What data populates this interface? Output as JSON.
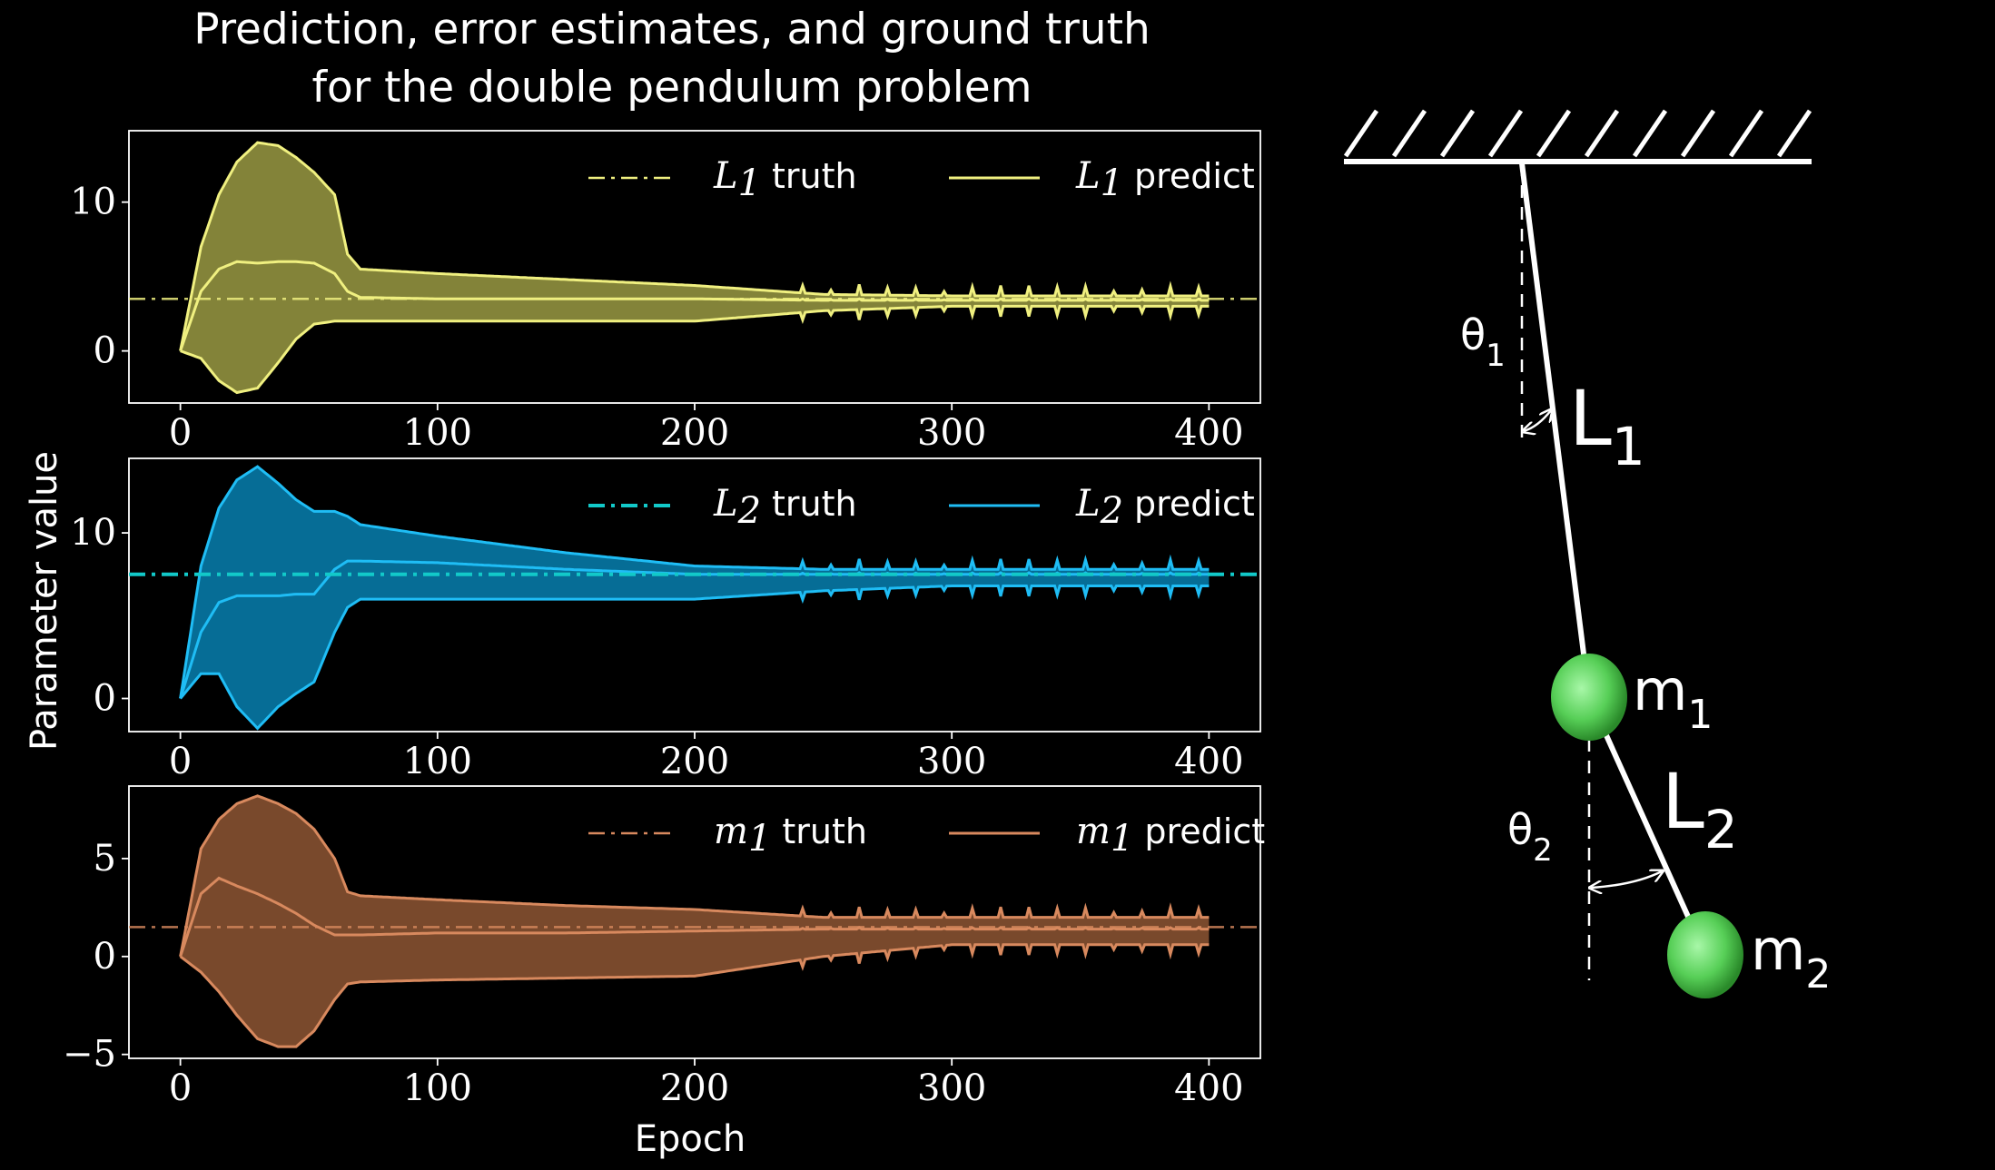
{
  "figure": {
    "title_line1": "Prediction, error estimates, and ground truth",
    "title_line2": "for the double pendulum problem",
    "ylabel": "Parameter value",
    "xlabel": "Epoch"
  },
  "chart_data": [
    {
      "type": "line",
      "xlim": [
        -20,
        420
      ],
      "ylim": [
        -3.5,
        14.8
      ],
      "xticks": [
        0,
        100,
        200,
        300,
        400
      ],
      "yticks": [
        0,
        10
      ],
      "color": "#f0f080",
      "fill_color": "#8a8a3c",
      "truth_value": 3.5,
      "legend": {
        "truth_sym": "L",
        "truth_sub": "1",
        "truth_text": "truth",
        "predict_sym": "L",
        "predict_sub": "1",
        "predict_text": "predict"
      },
      "series": [
        {
          "role": "upper",
          "x": [
            0,
            8,
            15,
            22,
            30,
            38,
            45,
            52,
            60,
            65,
            70,
            100,
            150,
            200,
            250,
            300,
            350,
            400
          ],
          "values": [
            0,
            7,
            10.5,
            12.7,
            14,
            13.8,
            13,
            12,
            10.5,
            6.5,
            5.5,
            5.2,
            4.8,
            4.4,
            3.8,
            3.7,
            3.7,
            3.7
          ]
        },
        {
          "role": "mean",
          "x": [
            0,
            8,
            15,
            22,
            30,
            38,
            45,
            52,
            60,
            65,
            70,
            100,
            150,
            200,
            250,
            300,
            350,
            400
          ],
          "values": [
            0,
            4,
            5.5,
            6,
            5.9,
            6,
            6,
            5.9,
            5.2,
            4,
            3.6,
            3.5,
            3.5,
            3.5,
            3.4,
            3.4,
            3.4,
            3.4
          ]
        },
        {
          "role": "lower",
          "x": [
            0,
            8,
            15,
            22,
            30,
            38,
            45,
            52,
            60,
            65,
            70,
            100,
            150,
            200,
            250,
            300,
            350,
            400
          ],
          "values": [
            0,
            -0.5,
            -2,
            -2.8,
            -2.5,
            -0.8,
            0.8,
            1.8,
            2,
            2,
            2,
            2,
            2,
            2,
            2.7,
            3,
            3,
            3
          ]
        }
      ]
    },
    {
      "type": "line",
      "xlim": [
        -20,
        420
      ],
      "ylim": [
        -2,
        14.5
      ],
      "xticks": [
        0,
        100,
        200,
        300,
        400
      ],
      "yticks": [
        0,
        10
      ],
      "color": "#1fbdf5",
      "fill_color": "#06739e",
      "truth_color": "#12c9c9",
      "truth_value": 7.5,
      "legend": {
        "truth_sym": "L",
        "truth_sub": "2",
        "truth_text": "truth",
        "predict_sym": "L",
        "predict_sub": "2",
        "predict_text": "predict"
      },
      "series": [
        {
          "role": "upper",
          "x": [
            0,
            8,
            15,
            22,
            30,
            38,
            45,
            52,
            60,
            65,
            70,
            100,
            150,
            200,
            250,
            300,
            350,
            400
          ],
          "values": [
            0,
            8,
            11.5,
            13.2,
            14,
            13,
            12,
            11.3,
            11.3,
            11,
            10.5,
            9.8,
            8.8,
            8,
            7.8,
            7.8,
            7.8,
            7.8
          ]
        },
        {
          "role": "mean",
          "x": [
            0,
            8,
            15,
            22,
            30,
            38,
            45,
            52,
            60,
            65,
            70,
            100,
            150,
            200,
            250,
            300,
            350,
            400
          ],
          "values": [
            0,
            4,
            5.8,
            6.2,
            6.2,
            6.2,
            6.3,
            6.3,
            7.8,
            8.3,
            8.3,
            8.2,
            7.8,
            7.5,
            7.5,
            7.5,
            7.5,
            7.5
          ]
        },
        {
          "role": "lower",
          "x": [
            0,
            8,
            15,
            22,
            30,
            38,
            45,
            52,
            60,
            65,
            70,
            100,
            150,
            200,
            250,
            300,
            350,
            400
          ],
          "values": [
            0,
            1.5,
            1.5,
            -0.5,
            -1.8,
            -0.5,
            0.3,
            1,
            4,
            5.5,
            6,
            6,
            6,
            6,
            6.5,
            6.8,
            6.8,
            6.8
          ]
        }
      ]
    },
    {
      "type": "line",
      "xlim": [
        -20,
        420
      ],
      "ylim": [
        -5.2,
        8.7
      ],
      "xticks": [
        0,
        100,
        200,
        300,
        400
      ],
      "yticks": [
        -5,
        0,
        5
      ],
      "color": "#d8895e",
      "fill_color": "#7f4d2e",
      "truth_value": 1.5,
      "legend": {
        "truth_sym": "m",
        "truth_sub": "1",
        "truth_text": "truth",
        "predict_sym": "m",
        "predict_sub": "1",
        "predict_text": "predict"
      },
      "series": [
        {
          "role": "upper",
          "x": [
            0,
            8,
            15,
            22,
            30,
            38,
            45,
            52,
            60,
            65,
            70,
            100,
            150,
            200,
            250,
            300,
            350,
            400
          ],
          "values": [
            0,
            5.5,
            7,
            7.8,
            8.2,
            7.8,
            7.3,
            6.5,
            5,
            3.3,
            3.1,
            2.9,
            2.6,
            2.4,
            2,
            2,
            2,
            2
          ]
        },
        {
          "role": "mean",
          "x": [
            0,
            8,
            15,
            22,
            30,
            38,
            45,
            52,
            60,
            65,
            70,
            100,
            150,
            200,
            250,
            300,
            350,
            400
          ],
          "values": [
            0,
            3.2,
            4,
            3.6,
            3.2,
            2.7,
            2.2,
            1.6,
            1.1,
            1.1,
            1.1,
            1.2,
            1.2,
            1.3,
            1.4,
            1.4,
            1.4,
            1.4
          ]
        },
        {
          "role": "lower",
          "x": [
            0,
            8,
            15,
            22,
            30,
            38,
            45,
            52,
            60,
            65,
            70,
            100,
            150,
            200,
            250,
            300,
            350,
            400
          ],
          "values": [
            0,
            -0.8,
            -1.8,
            -3,
            -4.2,
            -4.6,
            -4.6,
            -3.8,
            -2.2,
            -1.4,
            -1.3,
            -1.2,
            -1.1,
            -1,
            0,
            0.6,
            0.6,
            0.6
          ]
        }
      ]
    }
  ],
  "pendulum": {
    "theta1": "θ",
    "theta1_sub": "1",
    "L1": "L",
    "L1_sub": "1",
    "m1": "m",
    "m1_sub": "1",
    "theta2": "θ",
    "theta2_sub": "2",
    "L2": "L",
    "L2_sub": "2",
    "m2": "m",
    "m2_sub": "2",
    "bob_color": "#5ed85e"
  }
}
